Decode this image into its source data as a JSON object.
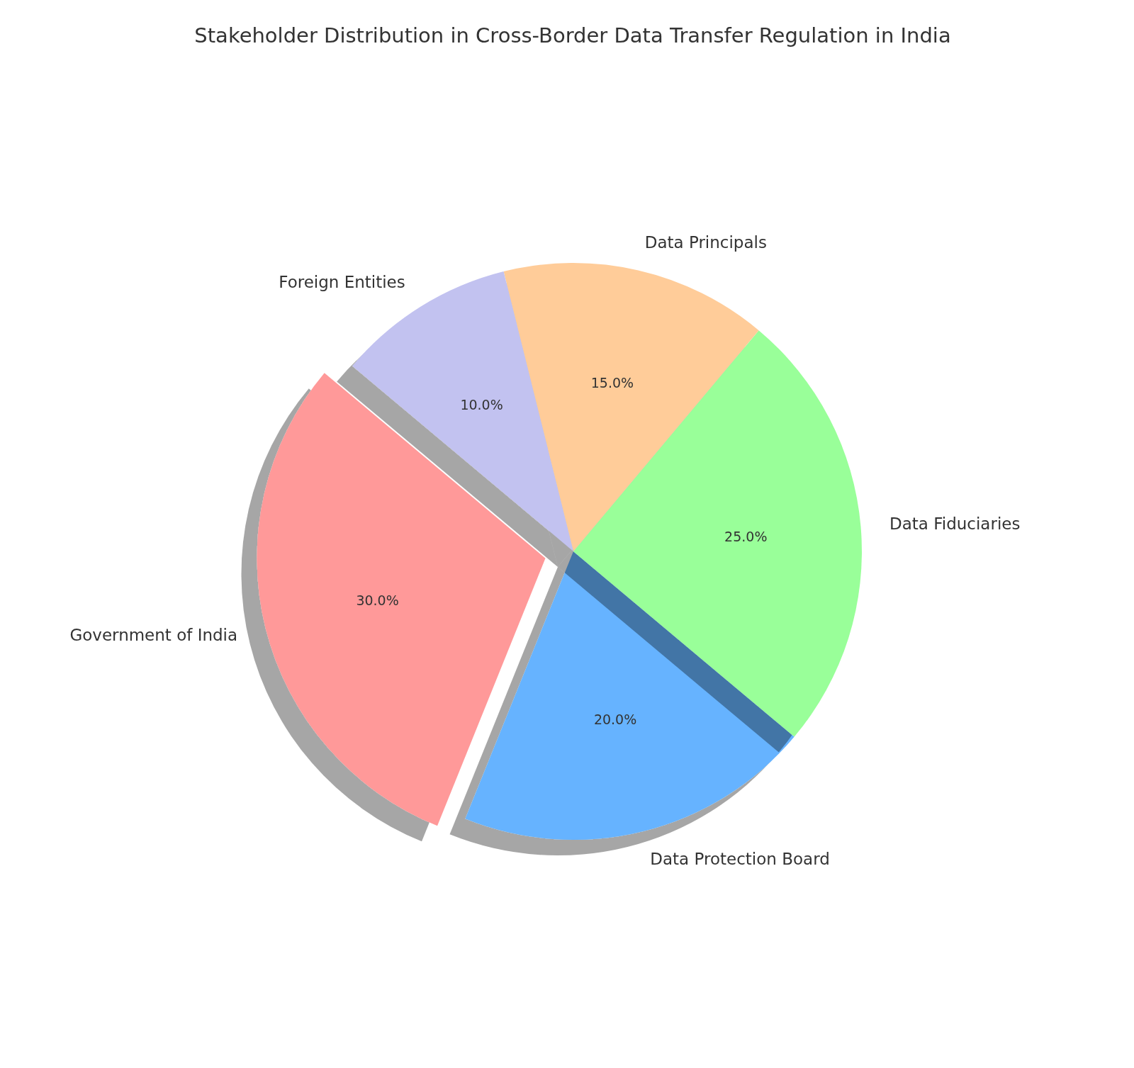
{
  "chart_data": {
    "type": "pie",
    "title": "Stakeholder Distribution in Cross-Border Data Transfer Regulation in India",
    "categories": [
      "Government of India",
      "Data Protection Board",
      "Data Fiduciaries",
      "Data Principals",
      "Foreign Entities"
    ],
    "values": [
      30,
      20,
      25,
      15,
      10
    ],
    "colors": [
      "#ff9999",
      "#66b3ff",
      "#99ff99",
      "#ffcc99",
      "#c2c2f0"
    ],
    "value_labels": [
      "30.0%",
      "20.0%",
      "25.0%",
      "15.0%",
      "10.0%"
    ]
  }
}
